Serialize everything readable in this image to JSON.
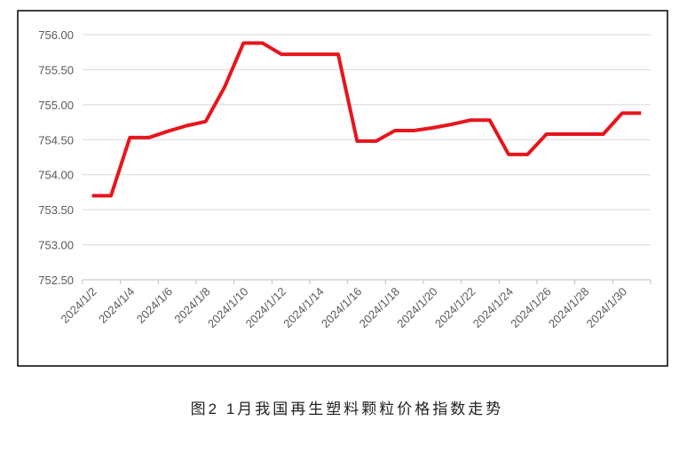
{
  "chart_data": {
    "type": "line",
    "caption": "图2 1月我国再生塑料颗粒价格指数走势",
    "categories": [
      "2024/1/2",
      null,
      "2024/1/4",
      null,
      "2024/1/6",
      null,
      "2024/1/8",
      null,
      "2024/1/10",
      null,
      "2024/1/12",
      null,
      "2024/1/14",
      null,
      "2024/1/16",
      null,
      "2024/1/18",
      null,
      "2024/1/20",
      null,
      "2024/1/22",
      null,
      "2024/1/24",
      null,
      "2024/1/26",
      null,
      "2024/1/28",
      null,
      "2024/1/30",
      null
    ],
    "series": [
      {
        "name": "价格指数",
        "color": "#e8141c",
        "values": [
          753.7,
          753.7,
          754.53,
          754.53,
          754.62,
          754.7,
          754.76,
          755.25,
          755.88,
          755.88,
          755.72,
          755.72,
          755.72,
          755.72,
          754.48,
          754.48,
          754.63,
          754.63,
          754.67,
          754.72,
          754.78,
          754.78,
          754.29,
          754.29,
          754.58,
          754.58,
          754.58,
          754.58,
          754.88,
          754.88
        ]
      }
    ],
    "ylim": [
      752.5,
      756
    ],
    "yticks": [
      {
        "value": 752.5,
        "label": "752.50"
      },
      {
        "value": 753,
        "label": "753.00"
      },
      {
        "value": 753.5,
        "label": "753.50"
      },
      {
        "value": 754,
        "label": "754.00"
      },
      {
        "value": 754.5,
        "label": "754.50"
      },
      {
        "value": 755,
        "label": "755.00"
      },
      {
        "value": 755.5,
        "label": "755.50"
      },
      {
        "value": 756,
        "label": "756.00"
      }
    ],
    "grid": true
  }
}
